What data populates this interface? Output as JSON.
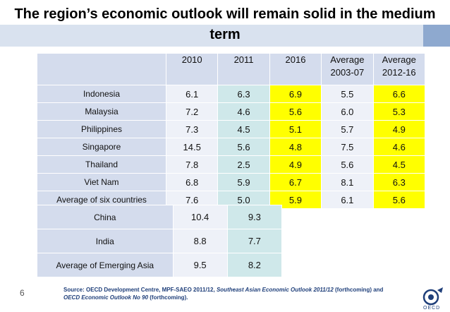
{
  "title": "The region’s economic outlook will remain solid in the medium term",
  "chart_data": {
    "type": "table",
    "columns": [
      "",
      "2010",
      "2011",
      "2016",
      "Average 2003-07",
      "Average 2012-16"
    ],
    "header": {
      "c2010": "2010",
      "c2011": "2011",
      "c2016": "2016",
      "avg1_line1": "Average",
      "avg1_line2": "2003-07",
      "avg2_line1": "Average",
      "avg2_line2": "2012-16"
    },
    "rows": [
      {
        "country": "Indonesia",
        "v2010": "6.1",
        "v2011": "6.3",
        "v2016": "6.9",
        "avg0307": "5.5",
        "avg1216": "6.6"
      },
      {
        "country": "Malaysia",
        "v2010": "7.2",
        "v2011": "4.6",
        "v2016": "5.6",
        "avg0307": "6.0",
        "avg1216": "5.3"
      },
      {
        "country": "Philippines",
        "v2010": "7.3",
        "v2011": "4.5",
        "v2016": "5.1",
        "avg0307": "5.7",
        "avg1216": "4.9"
      },
      {
        "country": "Singapore",
        "v2010": "14.5",
        "v2011": "5.6",
        "v2016": "4.8",
        "avg0307": "7.5",
        "avg1216": "4.6"
      },
      {
        "country": "Thailand",
        "v2010": "7.8",
        "v2011": "2.5",
        "v2016": "4.9",
        "avg0307": "5.6",
        "avg1216": "4.5"
      },
      {
        "country": "Viet Nam",
        "v2010": "6.8",
        "v2011": "5.9",
        "v2016": "6.7",
        "avg0307": "8.1",
        "avg1216": "6.3"
      },
      {
        "country": "Average of six countries",
        "v2010": "7.6",
        "v2011": "5.0",
        "v2016": "5.9",
        "avg0307": "6.1",
        "avg1216": "5.6"
      }
    ],
    "emerging": [
      {
        "country": "China",
        "v2010": "10.4",
        "v2011": "9.3"
      },
      {
        "country": "India",
        "v2010": "8.8",
        "v2011": "7.7"
      },
      {
        "country": "Average of Emerging Asia",
        "v2010": "9.5",
        "v2011": "8.2"
      }
    ]
  },
  "colors": {
    "header": "#d4dced",
    "label": "#d4dced",
    "base": "#eef1f8",
    "highlight_2011": "#cfe8ea",
    "highlight_yellow": "#ffff00"
  },
  "footer": {
    "slide_number": "6",
    "source_prefix": "Source: OECD Development Centre, MPF-SAEO 2011/12, ",
    "source_italic1": "Southeast Asian Economic Outlook 2011/12",
    "source_mid": " (forthcoming) and ",
    "source_italic2": "OECD Economic Outlook  No 90",
    "source_suffix": " (forthcoming).",
    "logo_text": "OECD"
  }
}
